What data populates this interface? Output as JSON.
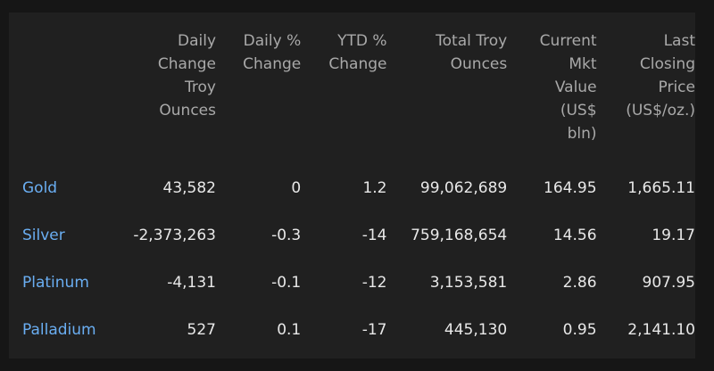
{
  "columns": [
    {
      "lines": [
        "Daily",
        "Change",
        "Troy",
        "Ounces"
      ]
    },
    {
      "lines": [
        "Daily %",
        "Change"
      ]
    },
    {
      "lines": [
        "YTD %",
        "Change"
      ]
    },
    {
      "lines": [
        "Total Troy",
        "Ounces"
      ]
    },
    {
      "lines": [
        "Current",
        "Mkt",
        "Value",
        "(US$",
        "bln)"
      ]
    },
    {
      "lines": [
        "Last",
        "Closing",
        "Price",
        "(US$/oz.)"
      ]
    }
  ],
  "rows": [
    {
      "metal": "Gold",
      "values": [
        "43,582",
        "0",
        "1.2",
        "99,062,689",
        "164.95",
        "1,665.11"
      ]
    },
    {
      "metal": "Silver",
      "values": [
        "-2,373,263",
        "-0.3",
        "-14",
        "759,168,654",
        "14.56",
        "19.17"
      ]
    },
    {
      "metal": "Platinum",
      "values": [
        "-4,131",
        "-0.1",
        "-12",
        "3,153,581",
        "2.86",
        "907.95"
      ]
    },
    {
      "metal": "Palladium",
      "values": [
        "527",
        "0.1",
        "-17",
        "445,130",
        "0.95",
        "2,141.10"
      ]
    }
  ],
  "colors": {
    "background": "#202020",
    "header_text": "#a9a9a9",
    "value_text": "#e8e8e8",
    "link": "#6aaef2"
  }
}
